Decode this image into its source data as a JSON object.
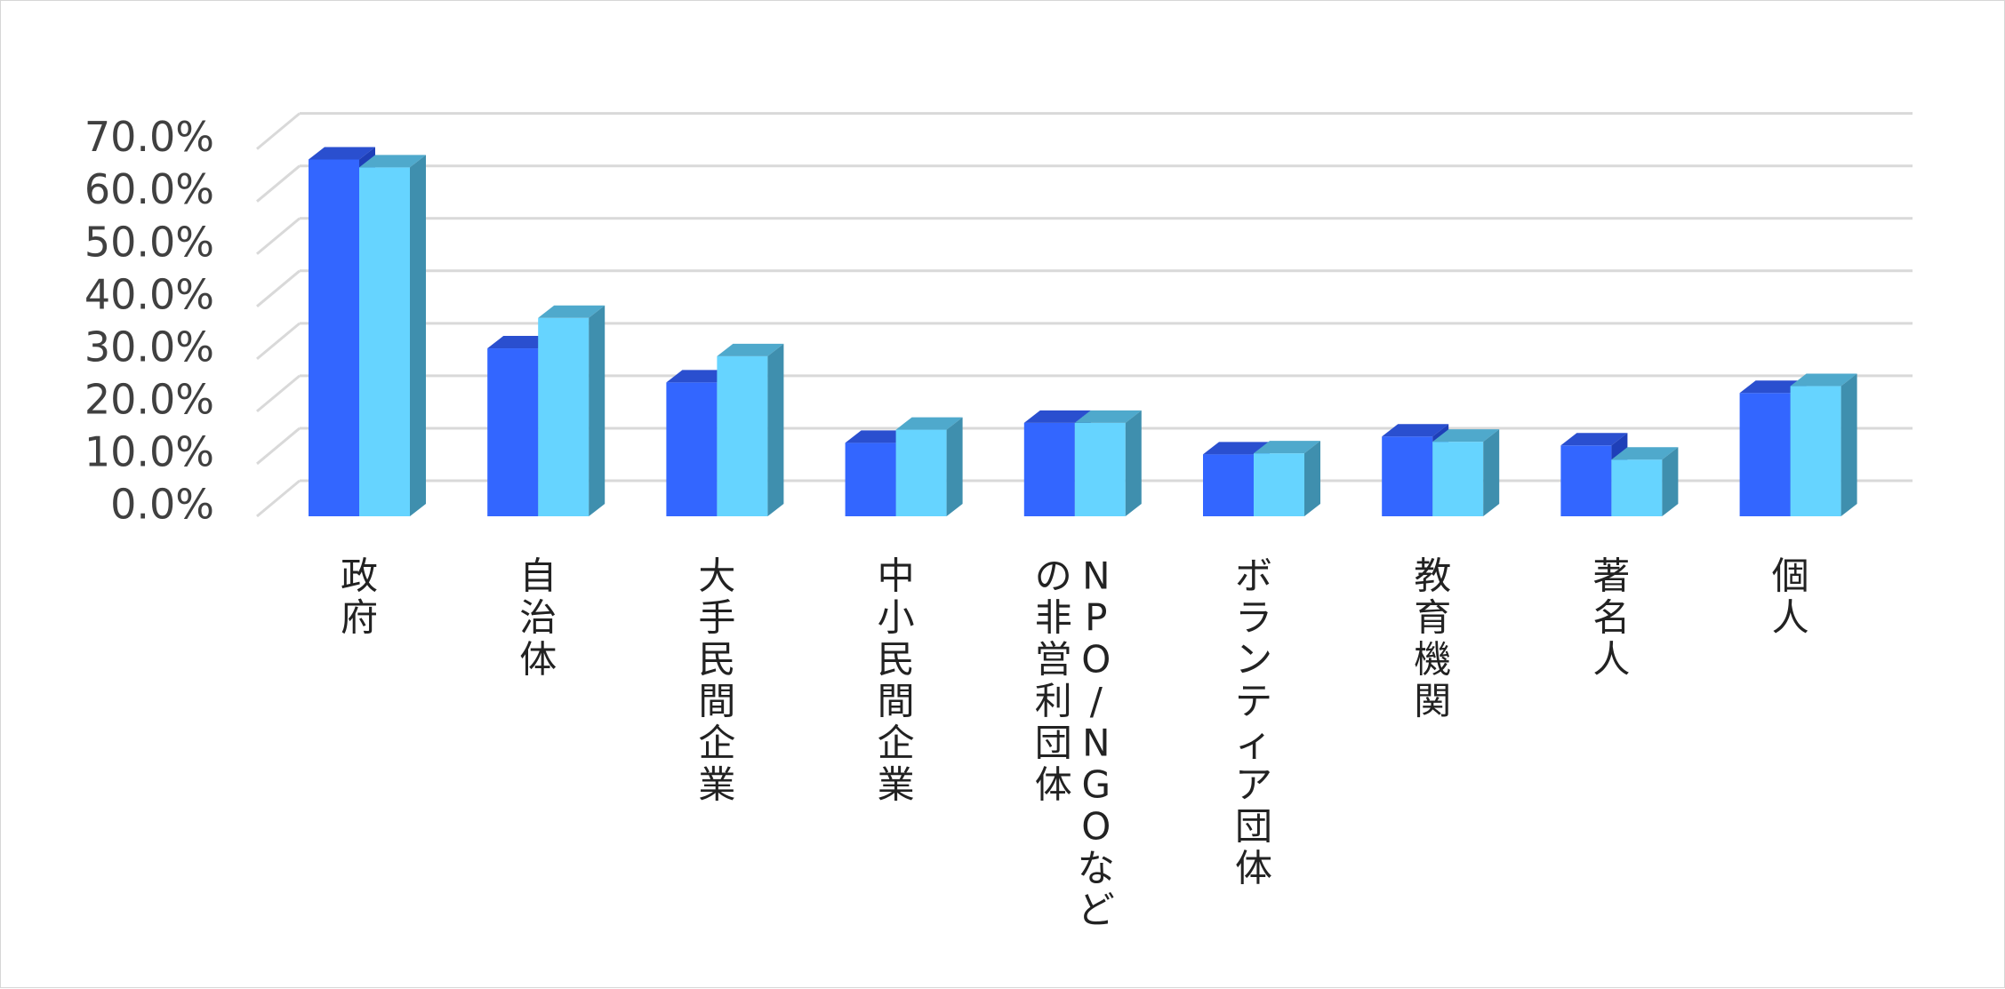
{
  "chart_data": {
    "type": "bar",
    "style": "3d-clustered-column",
    "categories": [
      [
        "政府"
      ],
      [
        "自治体"
      ],
      [
        "大手民間企業"
      ],
      [
        "中小民間企業"
      ],
      [
        "NPO/NGOなど",
        "の非営利団体"
      ],
      [
        "ボランティア団体"
      ],
      [
        "教育機関"
      ],
      [
        "著名人"
      ],
      [
        "個人"
      ]
    ],
    "series": [
      {
        "values": [
          68.0,
          32.0,
          25.5,
          14.0,
          17.8,
          11.8,
          15.2,
          13.5,
          23.5
        ],
        "colors": {
          "front": "#3366FF",
          "top": "#2A4FCF",
          "side": "#1E3FB8"
        }
      },
      {
        "values": [
          66.5,
          37.8,
          30.5,
          16.5,
          17.8,
          12.0,
          14.2,
          10.8,
          24.8
        ],
        "colors": {
          "front": "#66D4FF",
          "top": "#4FA9CC",
          "side": "#3F8FAE"
        }
      }
    ],
    "y_ticks": [
      "0.0%",
      "10.0%",
      "20.0%",
      "30.0%",
      "40.0%",
      "50.0%",
      "60.0%",
      "70.0%"
    ],
    "ylim": [
      0,
      70
    ],
    "grid": true,
    "grid_color": "#d9d9d9",
    "legend": "none"
  }
}
